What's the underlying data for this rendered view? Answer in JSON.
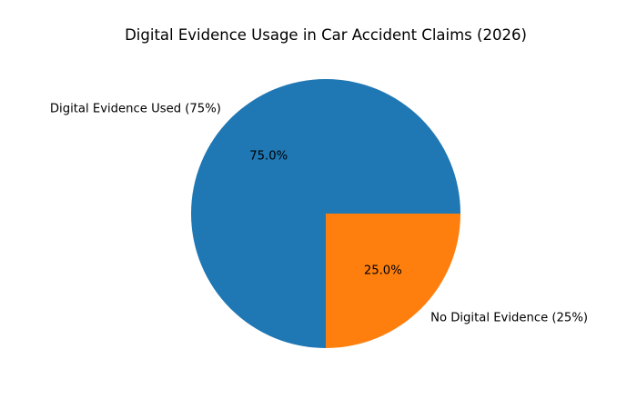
{
  "chart_data": {
    "type": "pie",
    "title": "Digital Evidence Usage in Car Accident Claims (2026)",
    "slices": [
      {
        "label": "Digital Evidence Used (75%)",
        "value": 75,
        "pct_label": "75.0%",
        "color": "#1f77b4"
      },
      {
        "label": "No Digital Evidence (25%)",
        "value": 25,
        "pct_label": "25.0%",
        "color": "#ff7f0e"
      }
    ],
    "start_angle": "east",
    "direction": "counterclockwise",
    "legend": "none"
  }
}
